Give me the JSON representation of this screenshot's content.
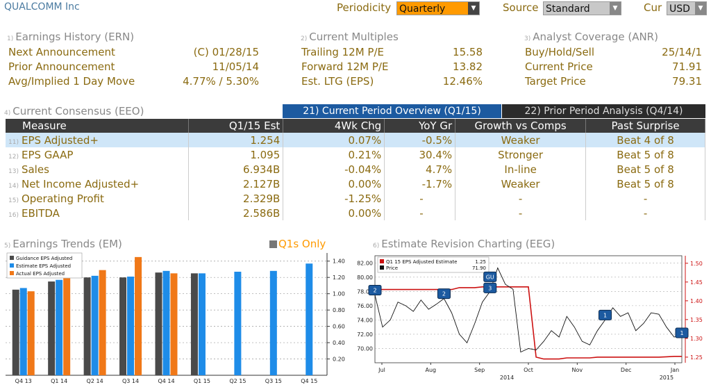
{
  "header": {
    "title": "QUALCOMM Inc",
    "periodicity_label": "Periodicity",
    "periodicity_value": "Quarterly",
    "source_label": "Source",
    "source_value": "Standard",
    "cur_label": "Cur",
    "cur_value": "USD"
  },
  "earnings_history": {
    "num": "1)",
    "title": "Earnings History (ERN)",
    "rows": [
      {
        "label": "Next Announcement",
        "value": "(C)  01/28/15"
      },
      {
        "label": "Prior Announcement",
        "value": "11/05/14"
      },
      {
        "label": "Avg/Implied 1 Day Move",
        "value": "4.77% / 5.30%"
      }
    ]
  },
  "current_multiples": {
    "num": "2)",
    "title": "Current Multiples",
    "rows": [
      {
        "label": "Trailing 12M P/E",
        "value": "15.58"
      },
      {
        "label": "Forward 12M P/E",
        "value": "13.82"
      },
      {
        "label": "Est. LTG (EPS)",
        "value": "12.46%"
      }
    ]
  },
  "analyst_coverage": {
    "num": "3)",
    "title": "Analyst Coverage (ANR)",
    "rows": [
      {
        "label": "Buy/Hold/Sell",
        "value": "25/14/1"
      },
      {
        "label": "Current Price",
        "value": "71.91"
      },
      {
        "label": "Target Price",
        "value": "79.31"
      }
    ]
  },
  "consensus": {
    "num": "4)",
    "title": "Current Consensus (EEO)",
    "tab_active": "21) Current Period Overview (Q1/15)",
    "tab_inactive": "22) Prior Period Analysis (Q4/14)",
    "columns": [
      "Measure",
      "Q1/15 Est",
      "4Wk Chg",
      "YoY Gr",
      "Growth vs Comps",
      "Past Surprise"
    ],
    "rows": [
      {
        "num": "11)",
        "measure": "EPS Adjusted+",
        "est": "1.254",
        "chg": "0.07%",
        "yoy": "-0.5%",
        "comps": "Weaker",
        "surprise": "Beat 4 of 8"
      },
      {
        "num": "12)",
        "measure": "EPS GAAP",
        "est": "1.095",
        "chg": "0.21%",
        "yoy": "30.4%",
        "comps": "Stronger",
        "surprise": "Beat 5 of 8"
      },
      {
        "num": "13)",
        "measure": "Sales",
        "est": "6.934B",
        "chg": "-0.04%",
        "yoy": "4.7%",
        "comps": "In-line",
        "surprise": "Beat 5 of 8"
      },
      {
        "num": "14)",
        "measure": "Net Income Adjusted+",
        "est": "2.127B",
        "chg": "0.00%",
        "yoy": "-1.7%",
        "comps": "Weaker",
        "surprise": "Beat 5 of 8"
      },
      {
        "num": "15)",
        "measure": "Operating Profit",
        "est": "2.329B",
        "chg": "-1.25%",
        "yoy": "-",
        "comps": "-",
        "surprise": "-"
      },
      {
        "num": "16)",
        "measure": "EBITDA",
        "est": "2.586B",
        "chg": "0.00%",
        "yoy": "-",
        "comps": "-",
        "surprise": "-"
      }
    ]
  },
  "trends": {
    "num": "5)",
    "title": "Earnings Trends (EM)",
    "toggle_label": "Q1s Only"
  },
  "revision": {
    "num": "6)",
    "title": "Estimate Revision Charting (EEG)"
  },
  "colors": {
    "guidance": "#4a4a4a",
    "estimate": "#1e8ce8",
    "actual": "#f07818",
    "estimate_line": "#cc1010",
    "price_line": "#111111",
    "accent": "#ff9a00"
  },
  "chart_data": [
    {
      "type": "bar",
      "categories": [
        "Q4 13",
        "Q1 14",
        "Q2 14",
        "Q3 14",
        "Q4 14",
        "Q1 15",
        "Q2 15",
        "Q3 15",
        "Q4 15"
      ],
      "series": [
        {
          "name": "Guidance EPS Adjusted",
          "values": [
            1.05,
            1.15,
            1.2,
            1.2,
            1.26,
            1.25,
            null,
            null,
            null
          ]
        },
        {
          "name": "Estimate EPS Adjusted",
          "values": [
            1.07,
            1.17,
            1.22,
            1.21,
            1.28,
            1.25,
            1.27,
            1.28,
            1.37
          ]
        },
        {
          "name": "Actual EPS Adjusted",
          "values": [
            1.03,
            1.19,
            1.29,
            1.45,
            1.25,
            null,
            null,
            null,
            null
          ]
        }
      ],
      "ylim": [
        0,
        1.5
      ],
      "yticks": [
        "1.40",
        "1.20",
        "1.00",
        "0.80",
        "0.60",
        "0.40",
        "0.20"
      ],
      "legend": "top-left"
    },
    {
      "type": "line",
      "x_labels": [
        "Jul",
        "Aug",
        "Sep",
        "Oct",
        "Nov",
        "Dec",
        "Jan"
      ],
      "x_sub_labels": [
        "2014",
        "2015"
      ],
      "left_yticks": [
        "82.00",
        "80.00",
        "78.00",
        "76.00",
        "74.00",
        "72.00",
        "70.00"
      ],
      "right_yticks": [
        "1.50",
        "1.45",
        "1.40",
        "1.35",
        "1.30",
        "1.25"
      ],
      "left_ylim": [
        68.0,
        83.0
      ],
      "right_ylim": [
        1.235,
        1.52
      ],
      "series": [
        {
          "name": "Q1 15 EPS Adjusted Estimate",
          "last": "1.25",
          "axis": "right",
          "values": [
            1.43,
            1.43,
            1.43,
            1.43,
            1.43,
            1.43,
            1.43,
            1.43,
            1.43,
            1.43,
            1.43,
            1.435,
            1.435,
            1.435,
            1.437,
            1.437,
            1.437,
            1.437,
            1.437,
            1.437,
            1.437,
            1.25,
            1.245,
            1.245,
            1.245,
            1.248,
            1.248,
            1.248,
            1.248,
            1.25,
            1.25,
            1.25,
            1.25,
            1.25,
            1.25,
            1.25,
            1.25,
            1.25,
            1.251,
            1.252,
            1.252
          ]
        },
        {
          "name": "Price",
          "last": "71.90",
          "axis": "left",
          "values": [
            77.5,
            73.0,
            74.0,
            76.5,
            76.0,
            75.2,
            76.8,
            75.5,
            76.2,
            77.0,
            75.0,
            72.0,
            70.8,
            73.5,
            76.5,
            78.0,
            81.3,
            79.0,
            78.3,
            69.5,
            70.0,
            69.8,
            71.0,
            72.5,
            71.6,
            74.5,
            73.0,
            71.0,
            70.5,
            72.5,
            74.0,
            75.7,
            74.5,
            75.0,
            72.5,
            73.5,
            75.0,
            74.8,
            73.0,
            71.6,
            71.9
          ]
        }
      ],
      "markers": [
        {
          "label": "2",
          "series_axis": "left"
        },
        {
          "label": "2",
          "series_axis": "left"
        },
        {
          "label": "3",
          "series_axis": "left"
        },
        {
          "label": "GU",
          "series_axis": "left"
        },
        {
          "label": "1",
          "series_axis": "left"
        },
        {
          "label": "1",
          "series_axis": "left"
        }
      ],
      "legend": "top-left"
    }
  ]
}
